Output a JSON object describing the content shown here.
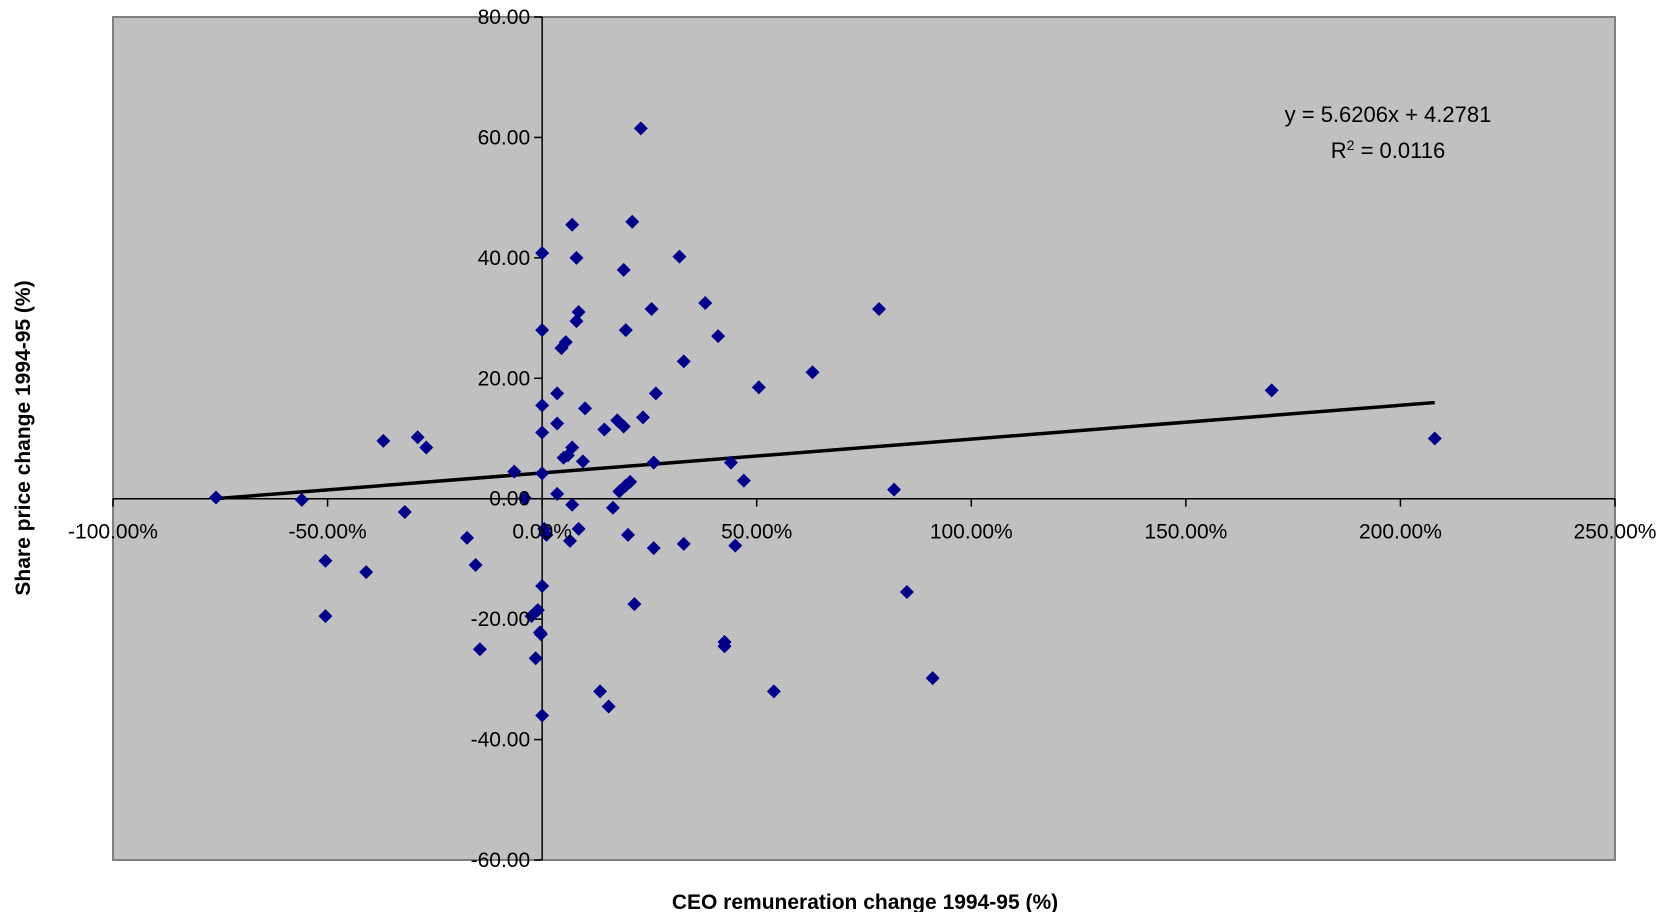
{
  "chart_data": {
    "type": "scatter",
    "xlabel": "CEO remuneration change 1994-95 (%)",
    "ylabel": "Share price change 1994-95 (%)",
    "xlim": [
      -100,
      250
    ],
    "ylim": [
      -60,
      80
    ],
    "x_ticks": [
      -100,
      -50,
      0,
      50,
      100,
      150,
      200,
      250
    ],
    "x_tick_labels": [
      "-100.00%",
      "-50.00%",
      "0.00%",
      "50.00%",
      "100.00%",
      "150.00%",
      "200.00%",
      "250.00%"
    ],
    "y_ticks": [
      -60,
      -40,
      -20,
      0,
      20,
      40,
      60,
      80
    ],
    "y_tick_labels": [
      "-60.00",
      "-40.00",
      "-20.00",
      "0.00",
      "20.00",
      "40.00",
      "60.00",
      "80.00"
    ],
    "grid": false,
    "legend": "none",
    "colors": {
      "plot_background": "#c0c0c0",
      "marker": "#00008b",
      "trendline": "#000000",
      "axes": "#000000"
    },
    "series": [
      {
        "marker": "diamond",
        "points": [
          [
            -76,
            0.2
          ],
          [
            -56,
            -0.2
          ],
          [
            -50.5,
            -10.3
          ],
          [
            -50.5,
            -19.5
          ],
          [
            -41,
            -12.2
          ],
          [
            -37,
            9.6
          ],
          [
            -32,
            -2.2
          ],
          [
            -29,
            10.2
          ],
          [
            -27,
            8.5
          ],
          [
            -17.5,
            -6.5
          ],
          [
            -15.5,
            -11
          ],
          [
            -14.5,
            -25
          ],
          [
            -6.5,
            4.5
          ],
          [
            -4,
            0.1
          ],
          [
            -2.5,
            -19.5
          ],
          [
            -1.5,
            -26.5
          ],
          [
            -1,
            -18.5
          ],
          [
            -0.5,
            -22.2
          ],
          [
            -0.3,
            -22.5
          ],
          [
            0,
            -36
          ],
          [
            0,
            -14.5
          ],
          [
            0,
            4.2
          ],
          [
            0,
            11
          ],
          [
            0,
            15.5
          ],
          [
            0,
            28
          ],
          [
            0,
            40.8
          ],
          [
            0.5,
            -5
          ],
          [
            1,
            -6
          ],
          [
            3.5,
            0.8
          ],
          [
            3.5,
            12.5
          ],
          [
            3.5,
            17.5
          ],
          [
            4.5,
            25
          ],
          [
            5,
            6.8
          ],
          [
            5.5,
            26
          ],
          [
            6,
            7.2
          ],
          [
            6.5,
            -7
          ],
          [
            7,
            8.5
          ],
          [
            7,
            -1
          ],
          [
            7,
            45.5
          ],
          [
            8,
            29.5
          ],
          [
            8,
            40
          ],
          [
            8.5,
            -5
          ],
          [
            8.5,
            31
          ],
          [
            9.5,
            6.2
          ],
          [
            10,
            15
          ],
          [
            13.5,
            -32
          ],
          [
            14.5,
            11.5
          ],
          [
            15.5,
            -34.5
          ],
          [
            16.5,
            -1.5
          ],
          [
            17.5,
            13
          ],
          [
            18,
            1.2
          ],
          [
            19,
            12
          ],
          [
            19,
            38
          ],
          [
            19.5,
            28
          ],
          [
            19.5,
            2.2
          ],
          [
            20,
            -6
          ],
          [
            20.5,
            2.8
          ],
          [
            21,
            46
          ],
          [
            21.5,
            -17.5
          ],
          [
            23,
            61.5
          ],
          [
            23.5,
            13.5
          ],
          [
            25.5,
            31.5
          ],
          [
            26,
            6
          ],
          [
            26,
            -8.2
          ],
          [
            26.5,
            17.5
          ],
          [
            32,
            40.2
          ],
          [
            33,
            -7.5
          ],
          [
            33,
            22.8
          ],
          [
            38,
            32.5
          ],
          [
            41,
            27
          ],
          [
            42.5,
            -24.5
          ],
          [
            42.5,
            -23.8
          ],
          [
            44,
            6
          ],
          [
            45,
            -7.8
          ],
          [
            47,
            3
          ],
          [
            50.5,
            18.5
          ],
          [
            54,
            -32
          ],
          [
            63,
            21
          ],
          [
            78.5,
            31.5
          ],
          [
            82,
            1.5
          ],
          [
            85,
            -15.5
          ],
          [
            91,
            -29.8
          ],
          [
            170,
            18
          ],
          [
            208,
            10
          ]
        ]
      }
    ],
    "trendline": {
      "type": "linear",
      "slope_per_unit": 5.6206,
      "intercept": 4.2781,
      "equation_label": "y = 5.6206x + 4.2781",
      "r2_prefix": "R",
      "r2_superscript": "2",
      "r2_suffix": " = 0.0116",
      "x_range": [
        -76,
        208
      ]
    }
  }
}
